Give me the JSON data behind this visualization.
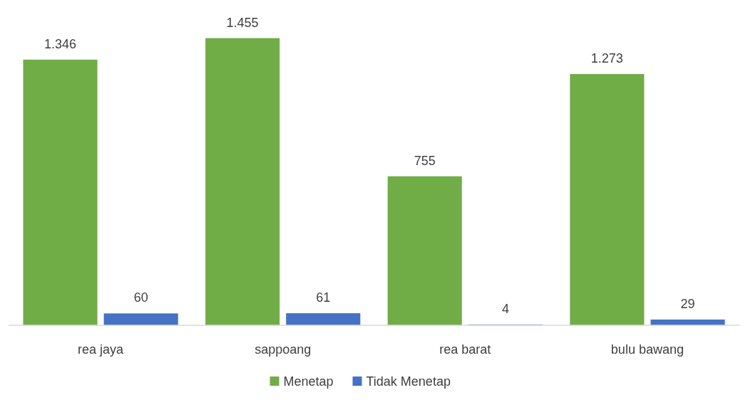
{
  "chart_data": {
    "type": "bar",
    "categories": [
      "rea jaya",
      "sappoang",
      "rea barat",
      "bulu bawang"
    ],
    "series": [
      {
        "name": "Menetap",
        "color": "#70ad47",
        "values": [
          1346,
          1455,
          755,
          1273
        ],
        "value_labels": [
          "1.346",
          "1.455",
          "755",
          "1.273"
        ]
      },
      {
        "name": "Tidak Menetap",
        "color": "#4472c4",
        "values": [
          60,
          61,
          4,
          29
        ],
        "value_labels": [
          "60",
          "61",
          "4",
          "29"
        ]
      }
    ],
    "legend": "bottom"
  }
}
